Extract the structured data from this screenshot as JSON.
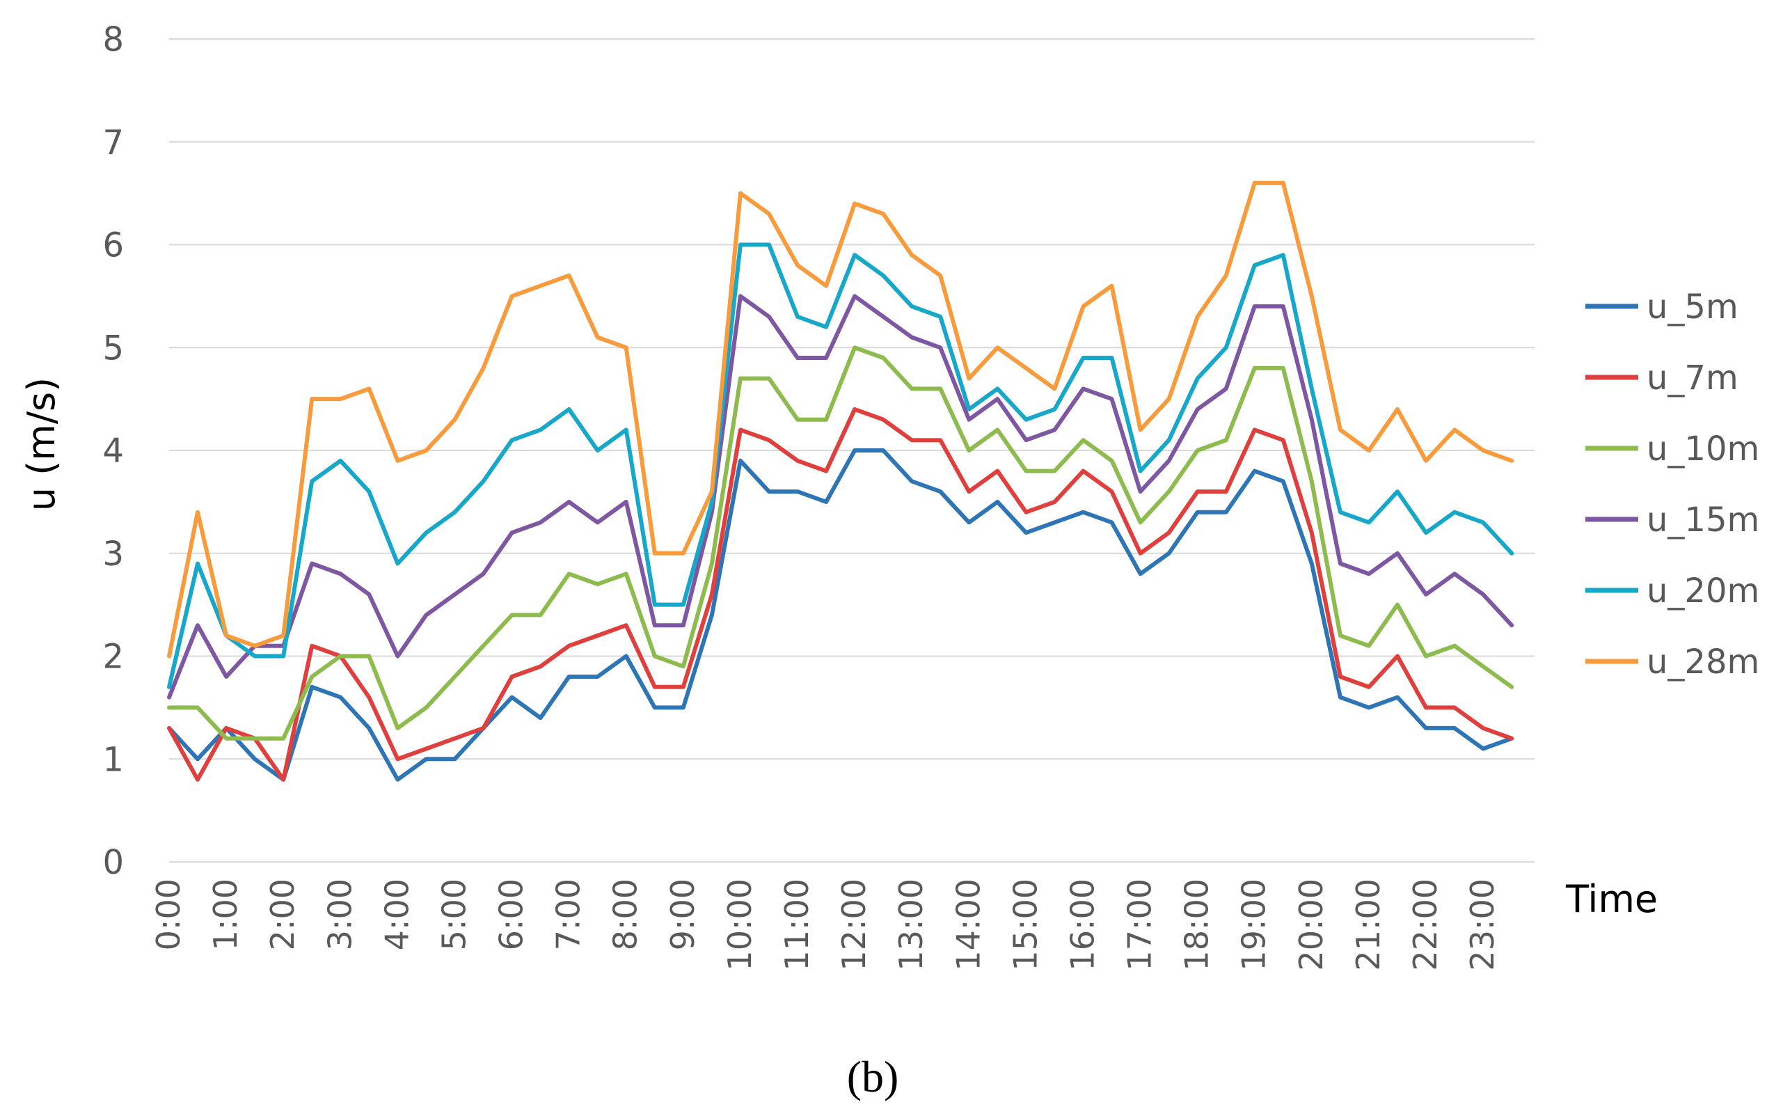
{
  "chart_data": {
    "type": "line",
    "title": "",
    "caption": "(b)",
    "xlabel": "Time",
    "ylabel": "u (m/s)",
    "ylim": [
      0,
      8
    ],
    "y_ticks": [
      "0",
      "1",
      "2",
      "3",
      "4",
      "5",
      "6",
      "7",
      "8"
    ],
    "x_tick_labels": [
      "0:00",
      "1:00",
      "2:00",
      "3:00",
      "4:00",
      "5:00",
      "6:00",
      "7:00",
      "8:00",
      "9:00",
      "10:00",
      "11:00",
      "12:00",
      "13:00",
      "14:00",
      "15:00",
      "16:00",
      "17:00",
      "18:00",
      "19:00",
      "20:00",
      "21:00",
      "22:00",
      "23:00"
    ],
    "x_hours": [
      0,
      0.5,
      1,
      1.5,
      2,
      2.5,
      3,
      3.5,
      4,
      4.5,
      5,
      5.5,
      6,
      6.5,
      7,
      7.5,
      8,
      8.5,
      9,
      9.5,
      10,
      10.5,
      11,
      11.5,
      12,
      12.5,
      13,
      13.5,
      14,
      14.5,
      15,
      15.5,
      16,
      16.5,
      17,
      17.5,
      18,
      18.5,
      19,
      19.5,
      20,
      20.5,
      21,
      21.5,
      22,
      22.5,
      23,
      23.5
    ],
    "grid": true,
    "legend_position": "right",
    "series": [
      {
        "name": "u_5m",
        "color": "#2E75B6",
        "values": [
          1.3,
          1.0,
          1.3,
          1.0,
          0.8,
          1.7,
          1.6,
          1.3,
          0.8,
          1.0,
          1.0,
          1.3,
          1.6,
          1.4,
          1.8,
          1.8,
          2.0,
          1.5,
          1.5,
          2.4,
          3.9,
          3.6,
          3.6,
          3.5,
          4.0,
          4.0,
          3.7,
          3.6,
          3.3,
          3.5,
          3.2,
          3.3,
          3.4,
          3.3,
          2.8,
          3.0,
          3.4,
          3.4,
          3.8,
          3.7,
          2.9,
          1.6,
          1.5,
          1.6,
          1.3,
          1.3,
          1.1,
          1.2
        ]
      },
      {
        "name": "u_7m",
        "color": "#E0403D",
        "values": [
          1.3,
          0.8,
          1.3,
          1.2,
          0.8,
          2.1,
          2.0,
          1.6,
          1.0,
          1.1,
          1.2,
          1.3,
          1.8,
          1.9,
          2.1,
          2.2,
          2.3,
          1.7,
          1.7,
          2.6,
          4.2,
          4.1,
          3.9,
          3.8,
          4.4,
          4.3,
          4.1,
          4.1,
          3.6,
          3.8,
          3.4,
          3.5,
          3.8,
          3.6,
          3.0,
          3.2,
          3.6,
          3.6,
          4.2,
          4.1,
          3.2,
          1.8,
          1.7,
          2.0,
          1.5,
          1.5,
          1.3,
          1.2
        ]
      },
      {
        "name": "u_10m",
        "color": "#8DBB4D",
        "values": [
          1.5,
          1.5,
          1.2,
          1.2,
          1.2,
          1.8,
          2.0,
          2.0,
          1.3,
          1.5,
          1.8,
          2.1,
          2.4,
          2.4,
          2.8,
          2.7,
          2.8,
          2.0,
          1.9,
          2.9,
          4.7,
          4.7,
          4.3,
          4.3,
          5.0,
          4.9,
          4.6,
          4.6,
          4.0,
          4.2,
          3.8,
          3.8,
          4.1,
          3.9,
          3.3,
          3.6,
          4.0,
          4.1,
          4.8,
          4.8,
          3.7,
          2.2,
          2.1,
          2.5,
          2.0,
          2.1,
          1.9,
          1.7
        ]
      },
      {
        "name": "u_15m",
        "color": "#7E57A3",
        "values": [
          1.6,
          2.3,
          1.8,
          2.1,
          2.1,
          2.9,
          2.8,
          2.6,
          2.0,
          2.4,
          2.6,
          2.8,
          3.2,
          3.3,
          3.5,
          3.3,
          3.5,
          2.3,
          2.3,
          3.4,
          5.5,
          5.3,
          4.9,
          4.9,
          5.5,
          5.3,
          5.1,
          5.0,
          4.3,
          4.5,
          4.1,
          4.2,
          4.6,
          4.5,
          3.6,
          3.9,
          4.4,
          4.6,
          5.4,
          5.4,
          4.3,
          2.9,
          2.8,
          3.0,
          2.6,
          2.8,
          2.6,
          2.3
        ]
      },
      {
        "name": "u_20m",
        "color": "#17A8C9",
        "values": [
          1.7,
          2.9,
          2.2,
          2.0,
          2.0,
          3.7,
          3.9,
          3.6,
          2.9,
          3.2,
          3.4,
          3.7,
          4.1,
          4.2,
          4.4,
          4.0,
          4.2,
          2.5,
          2.5,
          3.5,
          6.0,
          6.0,
          5.3,
          5.2,
          5.9,
          5.7,
          5.4,
          5.3,
          4.4,
          4.6,
          4.3,
          4.4,
          4.9,
          4.9,
          3.8,
          4.1,
          4.7,
          5.0,
          5.8,
          5.9,
          4.6,
          3.4,
          3.3,
          3.6,
          3.2,
          3.4,
          3.3,
          3.0
        ]
      },
      {
        "name": "u_28m",
        "color": "#F79B3C",
        "values": [
          2.0,
          3.4,
          2.2,
          2.1,
          2.2,
          4.5,
          4.5,
          4.6,
          3.9,
          4.0,
          4.3,
          4.8,
          5.5,
          5.6,
          5.7,
          5.1,
          5.0,
          3.0,
          3.0,
          3.6,
          6.5,
          6.3,
          5.8,
          5.6,
          6.4,
          6.3,
          5.9,
          5.7,
          4.7,
          5.0,
          4.8,
          4.6,
          5.4,
          5.6,
          4.2,
          4.5,
          5.3,
          5.7,
          6.6,
          6.6,
          5.5,
          4.2,
          4.0,
          4.4,
          3.9,
          4.2,
          4.0,
          3.9
        ]
      }
    ]
  }
}
